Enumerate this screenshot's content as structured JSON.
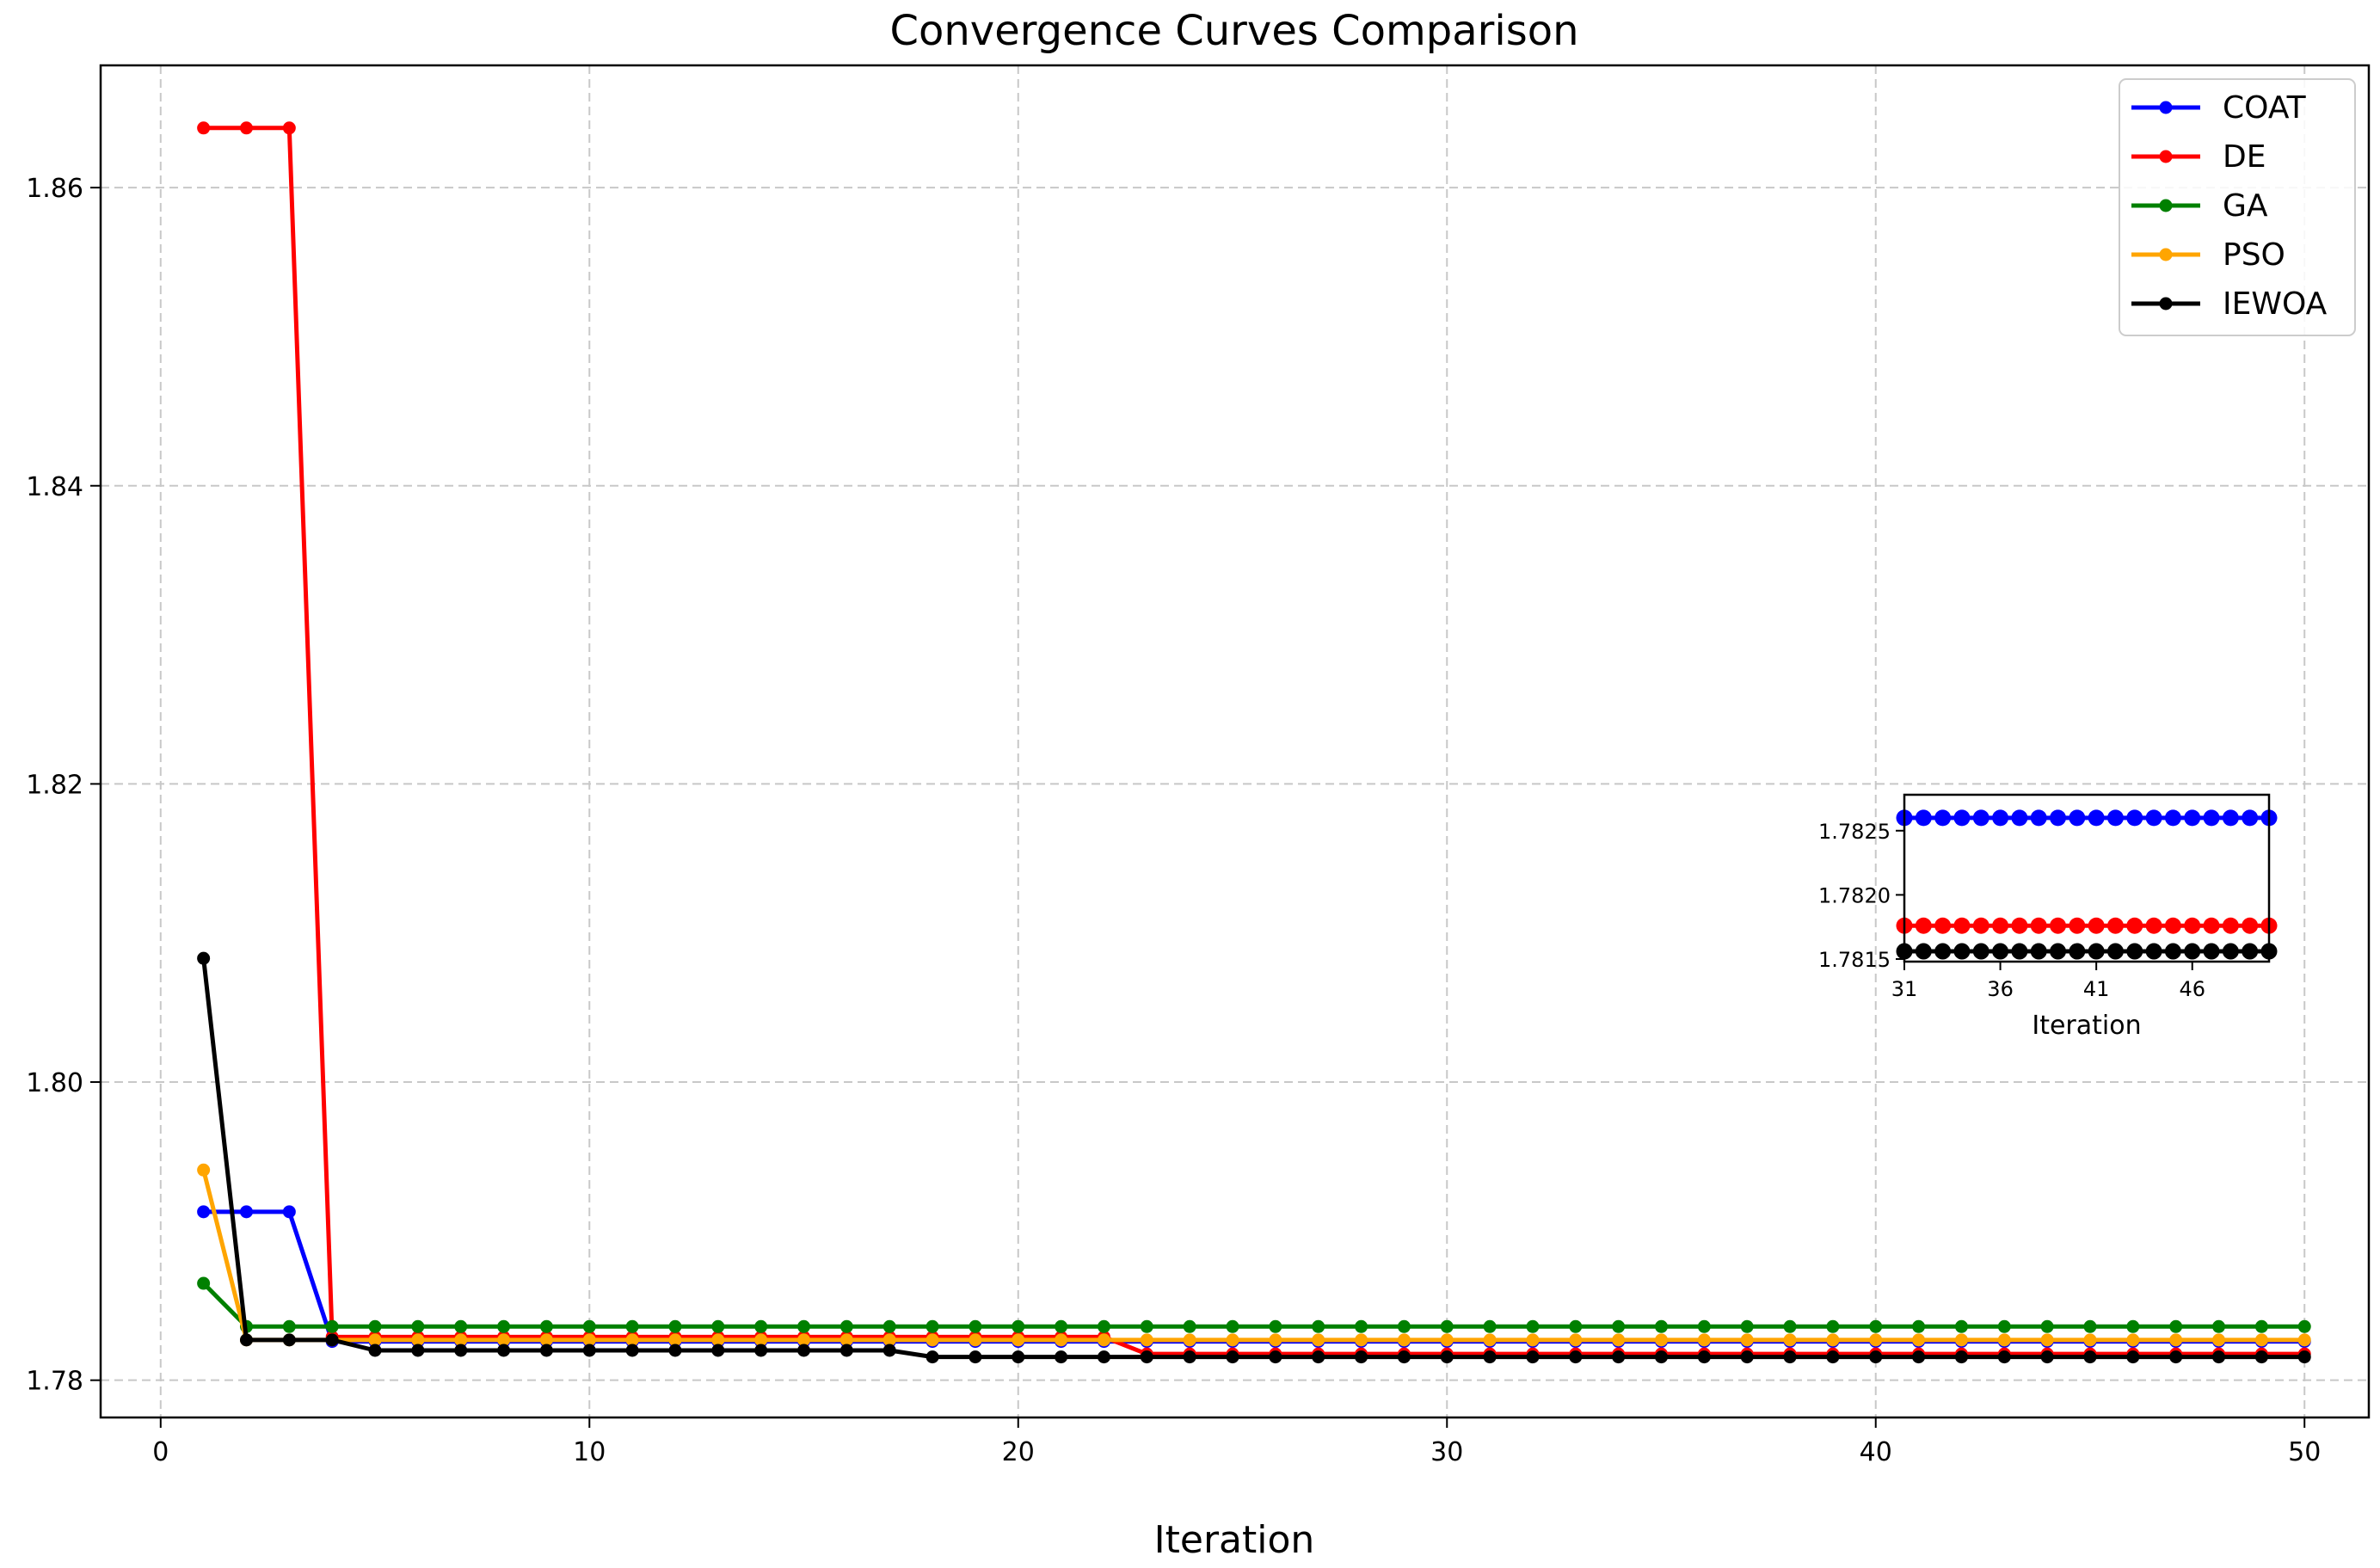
{
  "chart_data": {
    "type": "line",
    "title": "Convergence Curves Comparison",
    "xlabel": "Iteration",
    "ylabel": "",
    "xlim": [
      -1.4,
      51.5
    ],
    "ylim": [
      1.7775,
      1.8682
    ],
    "xticks": [
      0,
      10,
      20,
      30,
      40,
      50
    ],
    "yticks": [
      1.78,
      1.8,
      1.82,
      1.84,
      1.86
    ],
    "ytick_labels": [
      "1.78",
      "1.80",
      "1.82",
      "1.84",
      "1.86"
    ],
    "grid": true,
    "legend_position": "upper-right",
    "series": [
      {
        "name": "COAT",
        "color": "#0000ff",
        "marker": "circle",
        "segments": [
          {
            "from": 1,
            "to": 3,
            "y": 1.7913
          },
          {
            "from": 4,
            "to": 50,
            "y": 1.7826
          }
        ]
      },
      {
        "name": "DE",
        "color": "#ff0000",
        "marker": "circle",
        "segments": [
          {
            "from": 1,
            "to": 3,
            "y": 1.864
          },
          {
            "from": 4,
            "to": 22,
            "y": 1.7829
          },
          {
            "from": 23,
            "to": 50,
            "y": 1.78176
          }
        ]
      },
      {
        "name": "GA",
        "color": "#008000",
        "marker": "circle",
        "segments": [
          {
            "from": 1,
            "to": 1,
            "y": 1.7865
          },
          {
            "from": 2,
            "to": 50,
            "y": 1.7836
          }
        ]
      },
      {
        "name": "PSO",
        "color": "#ffa500",
        "marker": "circle",
        "segments": [
          {
            "from": 1,
            "to": 1,
            "y": 1.7941
          },
          {
            "from": 2,
            "to": 50,
            "y": 1.7827
          }
        ]
      },
      {
        "name": "IEWOA",
        "color": "#000000",
        "marker": "circle",
        "segments": [
          {
            "from": 1,
            "to": 1,
            "y": 1.8083
          },
          {
            "from": 2,
            "to": 4,
            "y": 1.7827
          },
          {
            "from": 5,
            "to": 17,
            "y": 1.782
          },
          {
            "from": 18,
            "to": 50,
            "y": 1.78156
          }
        ]
      }
    ],
    "inset": {
      "xlabel": "Iteration",
      "xlim": [
        31,
        50
      ],
      "ylim": [
        1.78148,
        1.78278
      ],
      "xticks": [
        31,
        36,
        41,
        46
      ],
      "yticks": [
        1.7815,
        1.782,
        1.7825
      ],
      "ytick_labels": [
        "1.7815",
        "1.7820",
        "1.7825"
      ],
      "series_shown": [
        "COAT",
        "DE",
        "IEWOA"
      ]
    }
  }
}
